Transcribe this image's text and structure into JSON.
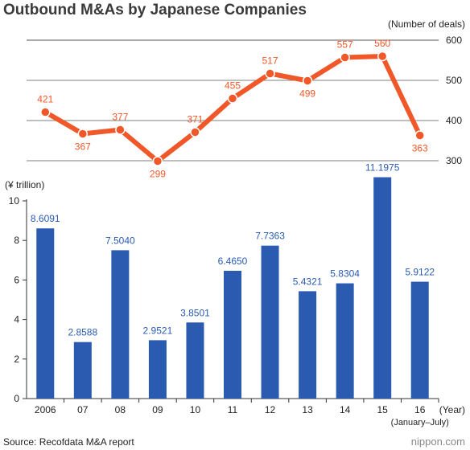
{
  "title": "Outbound M&As by Japanese Companies",
  "source": "Source: Recofdata M&A report",
  "logo": "nippon.com",
  "colors": {
    "bar": "#2a5bb0",
    "line": "#f0582a",
    "axis": "#333333"
  },
  "chart_data": [
    {
      "type": "line",
      "name_label": "",
      "ylabel": "(Number of deals)",
      "yticks": [
        300,
        400,
        500,
        600
      ],
      "ylim": [
        270,
        600
      ],
      "categories": [
        "2006",
        "07",
        "08",
        "09",
        "10",
        "11",
        "12",
        "13",
        "14",
        "15",
        "16"
      ],
      "values": [
        421,
        367,
        377,
        299,
        371,
        455,
        517,
        499,
        557,
        560,
        363
      ]
    },
    {
      "type": "bar",
      "ylabel": "(¥ trillion)",
      "yticks": [
        0,
        2,
        4,
        6,
        8,
        10
      ],
      "ylim": [
        0,
        10
      ],
      "xlabel": "(Year)",
      "categories": [
        "2006",
        "07",
        "08",
        "09",
        "10",
        "11",
        "12",
        "13",
        "14",
        "15",
        "16"
      ],
      "category_note": "(January–July)",
      "values": [
        8.6091,
        2.8588,
        7.504,
        2.9521,
        3.8501,
        6.465,
        7.7363,
        5.4321,
        5.8304,
        11.1975,
        5.9122
      ],
      "value_labels": [
        "8.6091",
        "2.8588",
        "7.5040",
        "2.9521",
        "3.8501",
        "6.4650",
        "7.7363",
        "5.4321",
        "5.8304",
        "11.1975",
        "5.9122"
      ]
    }
  ]
}
